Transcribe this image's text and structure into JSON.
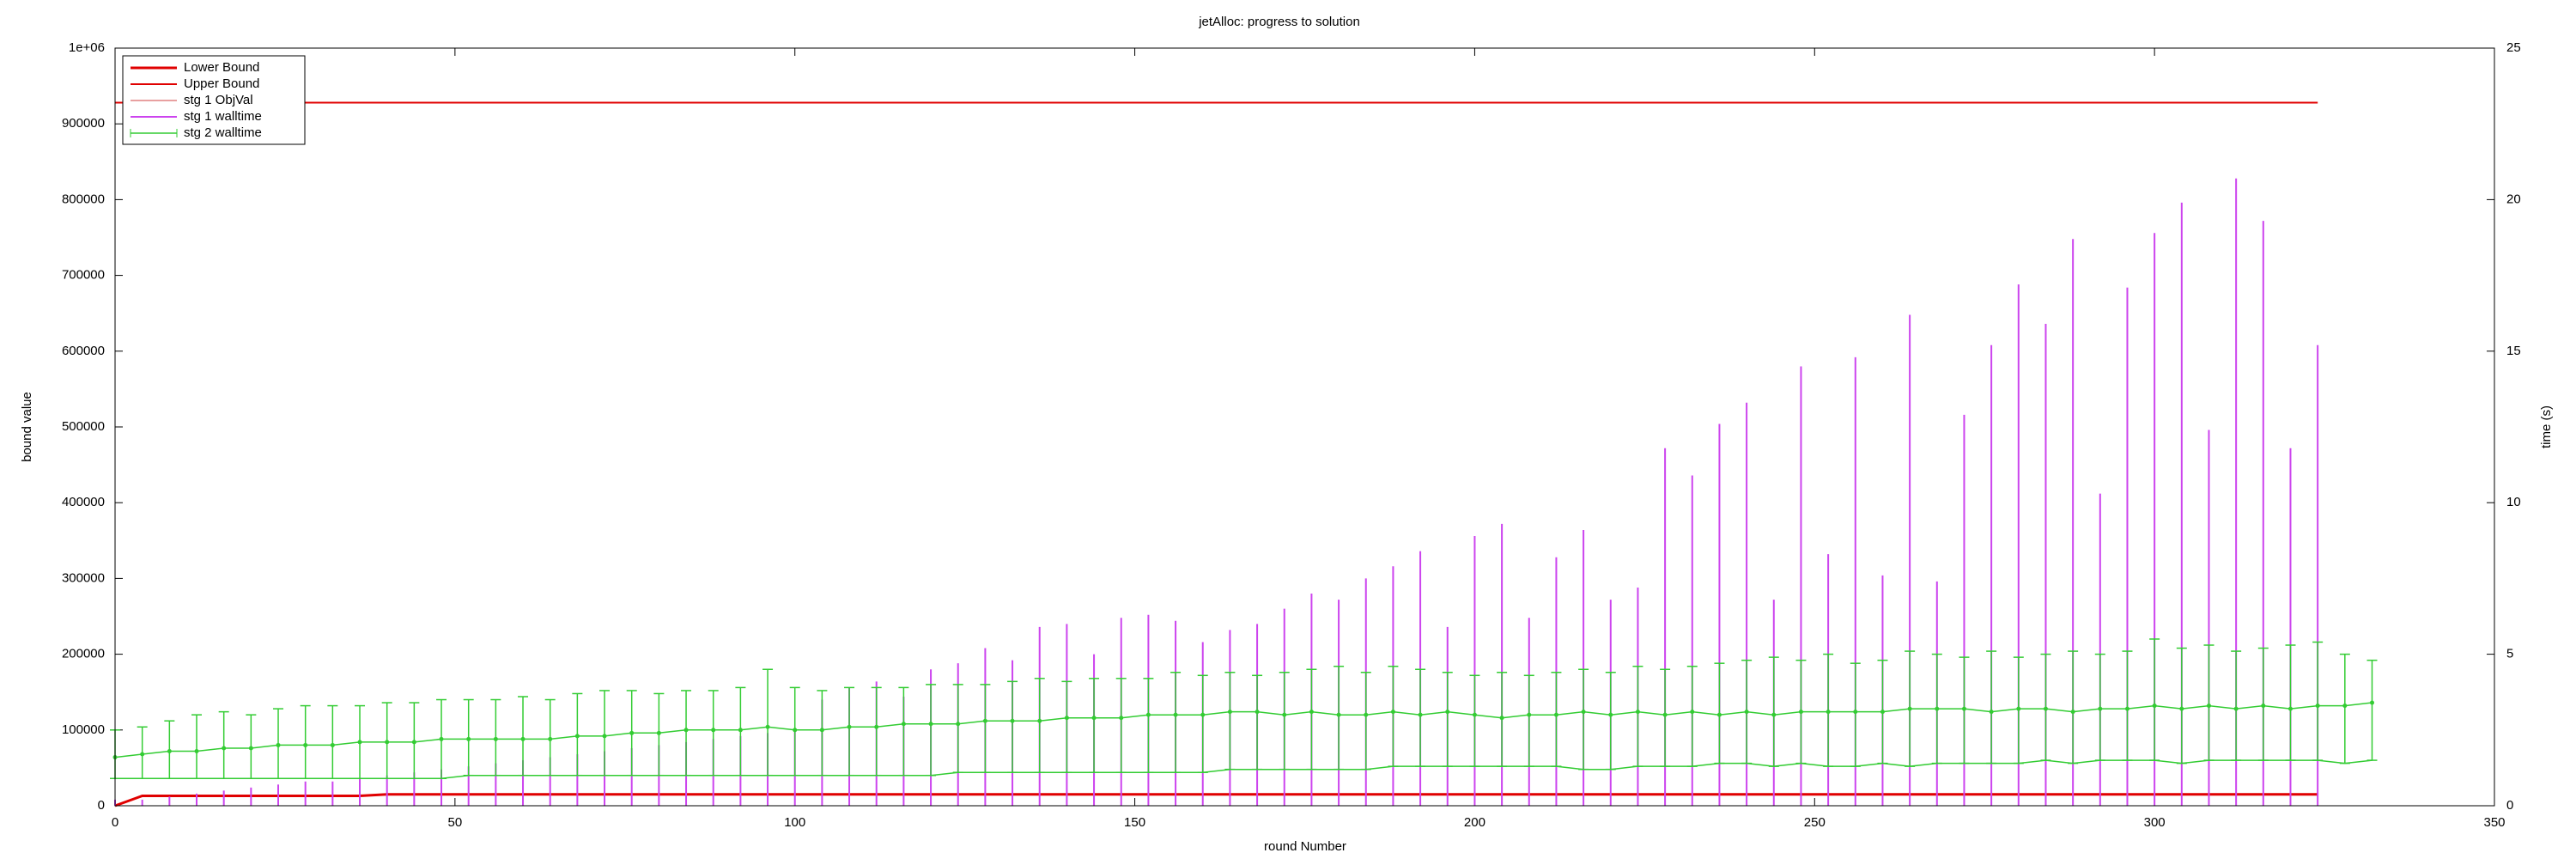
{
  "chart_data": {
    "type": "combo",
    "title": "jetAlloc: progress to solution",
    "x_label": "round Number",
    "y_label": "bound value",
    "y2_label": "time (s)",
    "xlim": [
      0,
      350
    ],
    "xticks": [
      0,
      50,
      100,
      150,
      200,
      250,
      300,
      350
    ],
    "ylim": [
      0,
      1000000
    ],
    "yticks": [
      0,
      100000,
      200000,
      300000,
      400000,
      500000,
      600000,
      700000,
      800000,
      900000,
      {
        "value": 1000000,
        "label": "1e+06"
      }
    ],
    "y2lim": [
      0,
      25
    ],
    "y2ticks": [
      0,
      5,
      10,
      15,
      20,
      25
    ],
    "legend": "top-left",
    "x": [
      0,
      4,
      8,
      12,
      16,
      20,
      24,
      28,
      32,
      36,
      40,
      44,
      48,
      52,
      56,
      60,
      64,
      68,
      72,
      76,
      80,
      84,
      88,
      92,
      96,
      100,
      104,
      108,
      112,
      116,
      120,
      124,
      128,
      132,
      136,
      140,
      144,
      148,
      152,
      156,
      160,
      164,
      168,
      172,
      176,
      180,
      184,
      188,
      192,
      196,
      200,
      204,
      208,
      212,
      216,
      220,
      224,
      228,
      232,
      236,
      240,
      244,
      248,
      252,
      256,
      260,
      264,
      268,
      272,
      276,
      280,
      284,
      288,
      292,
      296,
      300,
      304,
      308,
      312,
      316,
      320,
      324,
      328,
      332
    ],
    "series": [
      {
        "name": "Lower Bound",
        "type": "line",
        "color": "#e00000",
        "width": 3,
        "values": [
          0,
          13000,
          13000,
          13000,
          13000,
          13000,
          13000,
          13000,
          13000,
          13000,
          15000,
          15000,
          15000,
          15000,
          15000,
          15000,
          15000,
          15000,
          15000,
          15000,
          15000,
          15000,
          15000,
          15000,
          15000,
          15000,
          15000,
          15000,
          15000,
          15000,
          15000,
          15000,
          15000,
          15000,
          15000,
          15000,
          15000,
          15000,
          15000,
          15000,
          15000,
          15000,
          15000,
          15000,
          15000,
          15000,
          15000,
          15000,
          15000,
          15000,
          15000,
          15000,
          15000,
          15000,
          15000,
          15000,
          15000,
          15000,
          15000,
          15000,
          15000,
          15000,
          15000,
          15000,
          15000,
          15000,
          15000,
          15000,
          15000,
          15000,
          15000,
          15000,
          15000,
          15000,
          15000,
          15000,
          15000,
          15000,
          15000,
          15000,
          15000,
          15000,
          null,
          null
        ]
      },
      {
        "name": "Upper Bound",
        "type": "line",
        "color": "#e00000",
        "width": 2,
        "values": [
          928000,
          928000,
          928000,
          928000,
          928000,
          928000,
          928000,
          928000,
          928000,
          928000,
          928000,
          928000,
          928000,
          928000,
          928000,
          928000,
          928000,
          928000,
          928000,
          928000,
          928000,
          928000,
          928000,
          928000,
          928000,
          928000,
          928000,
          928000,
          928000,
          928000,
          928000,
          928000,
          928000,
          928000,
          928000,
          928000,
          928000,
          928000,
          928000,
          928000,
          928000,
          928000,
          928000,
          928000,
          928000,
          928000,
          928000,
          928000,
          928000,
          928000,
          928000,
          928000,
          928000,
          928000,
          928000,
          928000,
          928000,
          928000,
          928000,
          928000,
          928000,
          928000,
          928000,
          928000,
          928000,
          928000,
          928000,
          928000,
          928000,
          928000,
          928000,
          928000,
          928000,
          928000,
          928000,
          928000,
          928000,
          928000,
          928000,
          928000,
          928000,
          928000,
          null,
          null
        ]
      },
      {
        "name": "stg 1 ObjVal",
        "type": "legend",
        "color": "#d04040",
        "width": 1
      },
      {
        "name": "stg 1 walltime",
        "type": "impulse",
        "axis": "y2",
        "color": "#cc44ee",
        "width": 2,
        "values": [
          0.2,
          0.2,
          0.3,
          0.4,
          0.5,
          0.6,
          0.7,
          0.8,
          0.8,
          0.9,
          1.0,
          1.1,
          1.2,
          1.3,
          1.4,
          1.5,
          1.6,
          1.7,
          1.8,
          1.9,
          2.0,
          2.1,
          2.2,
          2.3,
          2.4,
          2.5,
          3.5,
          3.9,
          4.1,
          3.6,
          4.5,
          4.7,
          5.2,
          4.8,
          5.9,
          6.0,
          5.0,
          6.2,
          6.3,
          6.1,
          5.4,
          5.8,
          6.0,
          6.5,
          7.0,
          6.8,
          7.5,
          7.9,
          8.4,
          5.9,
          8.9,
          9.3,
          6.2,
          8.2,
          9.1,
          6.8,
          7.2,
          11.8,
          10.9,
          12.6,
          13.3,
          6.8,
          14.5,
          8.3,
          14.8,
          7.6,
          16.2,
          7.4,
          12.9,
          15.2,
          17.2,
          15.9,
          18.7,
          10.3,
          17.1,
          18.9,
          19.9,
          12.4,
          20.7,
          19.3,
          11.8,
          15.2,
          null,
          null
        ]
      },
      {
        "name": "stg 2 walltime",
        "type": "errorbar",
        "axis": "y2",
        "color": "#33cc33",
        "width": 1.5,
        "values": [
          1.6,
          1.7,
          1.8,
          1.8,
          1.9,
          1.9,
          2.0,
          2.0,
          2.0,
          2.1,
          2.1,
          2.1,
          2.2,
          2.2,
          2.2,
          2.2,
          2.2,
          2.3,
          2.3,
          2.4,
          2.4,
          2.5,
          2.5,
          2.5,
          2.6,
          2.5,
          2.5,
          2.6,
          2.6,
          2.7,
          2.7,
          2.7,
          2.8,
          2.8,
          2.8,
          2.9,
          2.9,
          2.9,
          3.0,
          3.0,
          3.0,
          3.1,
          3.1,
          3.0,
          3.1,
          3.0,
          3.0,
          3.1,
          3.0,
          3.1,
          3.0,
          2.9,
          3.0,
          3.0,
          3.1,
          3.0,
          3.1,
          3.0,
          3.1,
          3.0,
          3.1,
          3.0,
          3.1,
          3.1,
          3.1,
          3.1,
          3.2,
          3.2,
          3.2,
          3.1,
          3.2,
          3.2,
          3.1,
          3.2,
          3.2,
          3.3,
          3.2,
          3.3,
          3.2,
          3.3,
          3.2,
          3.3,
          3.3,
          3.4
        ],
        "low": [
          0.9,
          0.9,
          0.9,
          0.9,
          0.9,
          0.9,
          0.9,
          0.9,
          0.9,
          0.9,
          0.9,
          0.9,
          0.9,
          1.0,
          1.0,
          1.0,
          1.0,
          1.0,
          1.0,
          1.0,
          1.0,
          1.0,
          1.0,
          1.0,
          1.0,
          1.0,
          1.0,
          1.0,
          1.0,
          1.0,
          1.0,
          1.1,
          1.1,
          1.1,
          1.1,
          1.1,
          1.1,
          1.1,
          1.1,
          1.1,
          1.1,
          1.2,
          1.2,
          1.2,
          1.2,
          1.2,
          1.2,
          1.3,
          1.3,
          1.3,
          1.3,
          1.3,
          1.3,
          1.3,
          1.2,
          1.2,
          1.3,
          1.3,
          1.3,
          1.4,
          1.4,
          1.3,
          1.4,
          1.3,
          1.3,
          1.4,
          1.3,
          1.4,
          1.4,
          1.4,
          1.4,
          1.5,
          1.4,
          1.5,
          1.5,
          1.5,
          1.4,
          1.5,
          1.5,
          1.5,
          1.5,
          1.5,
          1.4,
          1.5
        ],
        "high": [
          2.5,
          2.6,
          2.8,
          3.0,
          3.1,
          3.0,
          3.2,
          3.3,
          3.3,
          3.3,
          3.4,
          3.4,
          3.5,
          3.5,
          3.5,
          3.6,
          3.5,
          3.7,
          3.8,
          3.8,
          3.7,
          3.8,
          3.8,
          3.9,
          4.5,
          3.9,
          3.8,
          3.9,
          3.9,
          3.9,
          4.0,
          4.0,
          4.0,
          4.1,
          4.2,
          4.1,
          4.2,
          4.2,
          4.2,
          4.4,
          4.3,
          4.4,
          4.3,
          4.4,
          4.5,
          4.6,
          4.4,
          4.6,
          4.5,
          4.4,
          4.3,
          4.4,
          4.3,
          4.4,
          4.5,
          4.4,
          4.6,
          4.5,
          4.6,
          4.7,
          4.8,
          4.9,
          4.8,
          5.0,
          4.7,
          4.8,
          5.1,
          5.0,
          4.9,
          5.1,
          4.9,
          5.0,
          5.1,
          5.0,
          5.1,
          5.5,
          5.2,
          5.3,
          5.1,
          5.2,
          5.3,
          5.4,
          5.0,
          4.8
        ]
      }
    ]
  }
}
